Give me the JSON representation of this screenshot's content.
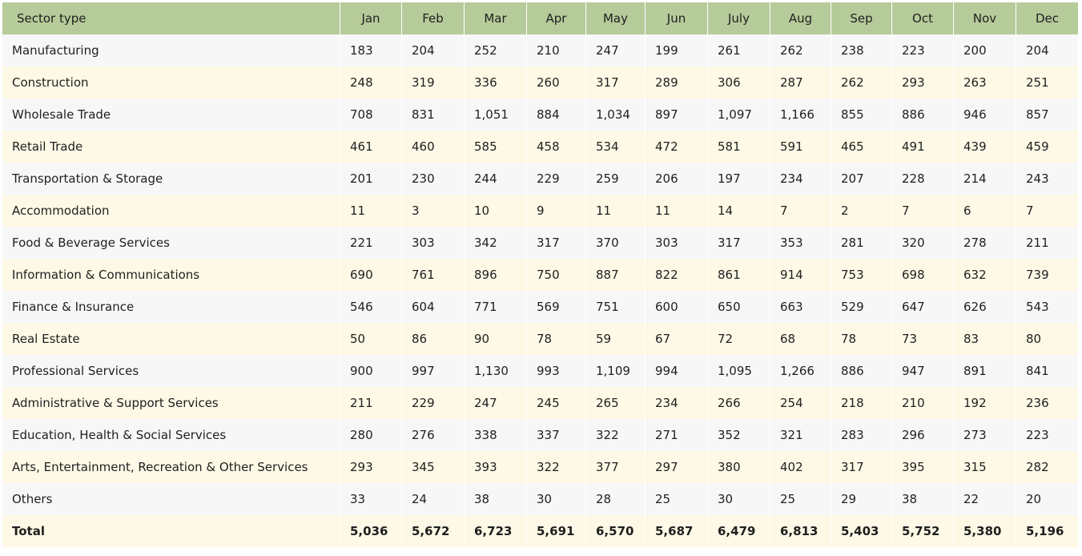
{
  "columns": [
    "Sector type",
    "Jan",
    "Feb",
    "Mar",
    "Apr",
    "May",
    "Jun",
    "July",
    "Aug",
    "Sep",
    "Oct",
    "Nov",
    "Dec"
  ],
  "rows": [
    {
      "label": "Manufacturing",
      "values": [
        "183",
        "204",
        "252",
        "210",
        "247",
        "199",
        "261",
        "262",
        "238",
        "223",
        "200",
        "204"
      ]
    },
    {
      "label": "Construction",
      "values": [
        "248",
        "319",
        "336",
        "260",
        "317",
        "289",
        "306",
        "287",
        "262",
        "293",
        "263",
        "251"
      ]
    },
    {
      "label": "Wholesale Trade",
      "values": [
        "708",
        "831",
        "1,051",
        "884",
        "1,034",
        "897",
        "1,097",
        "1,166",
        "855",
        "886",
        "946",
        "857"
      ]
    },
    {
      "label": "Retail Trade",
      "values": [
        "461",
        "460",
        "585",
        "458",
        "534",
        "472",
        "581",
        "591",
        "465",
        "491",
        "439",
        "459"
      ]
    },
    {
      "label": "Transportation & Storage",
      "values": [
        "201",
        "230",
        "244",
        "229",
        "259",
        "206",
        "197",
        "234",
        "207",
        "228",
        "214",
        "243"
      ]
    },
    {
      "label": " Accommodation",
      "values": [
        "11",
        "3",
        "10",
        "9",
        "11",
        "11",
        "14",
        "7",
        "2",
        "7",
        "6",
        "7"
      ]
    },
    {
      "label": "Food & Beverage Services",
      "values": [
        "221",
        "303",
        "342",
        "317",
        "370",
        "303",
        "317",
        "353",
        "281",
        "320",
        "278",
        "211"
      ]
    },
    {
      "label": "Information & Communications",
      "values": [
        "690",
        "761",
        "896",
        "750",
        "887",
        "822",
        "861",
        "914",
        "753",
        "698",
        "632",
        "739"
      ]
    },
    {
      "label": "Finance & Insurance",
      "values": [
        "546",
        "604",
        "771",
        "569",
        "751",
        "600",
        "650",
        "663",
        "529",
        "647",
        "626",
        "543"
      ]
    },
    {
      "label": " Real Estate",
      "values": [
        "50",
        "86",
        "90",
        "78",
        "59",
        "67",
        "72",
        "68",
        "78",
        "73",
        "83",
        "80"
      ]
    },
    {
      "label": "Professional Services",
      "values": [
        "900",
        "997",
        "1,130",
        "993",
        "1,109",
        "994",
        "1,095",
        "1,266",
        "886",
        "947",
        "891",
        "841"
      ]
    },
    {
      "label": "Administrative & Support Services",
      "values": [
        "211",
        "229",
        "247",
        "245",
        "265",
        "234",
        "266",
        "254",
        "218",
        "210",
        "192",
        "236"
      ]
    },
    {
      "label": "Education, Health & Social Services",
      "values": [
        "280",
        "276",
        "338",
        "337",
        "322",
        "271",
        "352",
        "321",
        "283",
        "296",
        "273",
        "223"
      ]
    },
    {
      "label": "Arts, Entertainment, Recreation & Other Services",
      "values": [
        "293",
        "345",
        "393",
        "322",
        "377",
        "297",
        "380",
        "402",
        "317",
        "395",
        "315",
        "282"
      ]
    },
    {
      "label": "Others",
      "values": [
        "33",
        "24",
        "38",
        "30",
        "28",
        "25",
        "30",
        "25",
        "29",
        "38",
        "22",
        "20"
      ]
    }
  ],
  "total": {
    "label": "Total",
    "values": [
      "5,036",
      "5,672",
      "6,723",
      "5,691",
      "6,570",
      "5,687",
      "6,479",
      "6,813",
      "5,403",
      "5,752",
      "5,380",
      "5,196"
    ]
  },
  "colors": {
    "header_bg": "#b6cb9a",
    "row_alt_bg": "#fdf9e6",
    "row_bg": "#f7f7f7"
  }
}
